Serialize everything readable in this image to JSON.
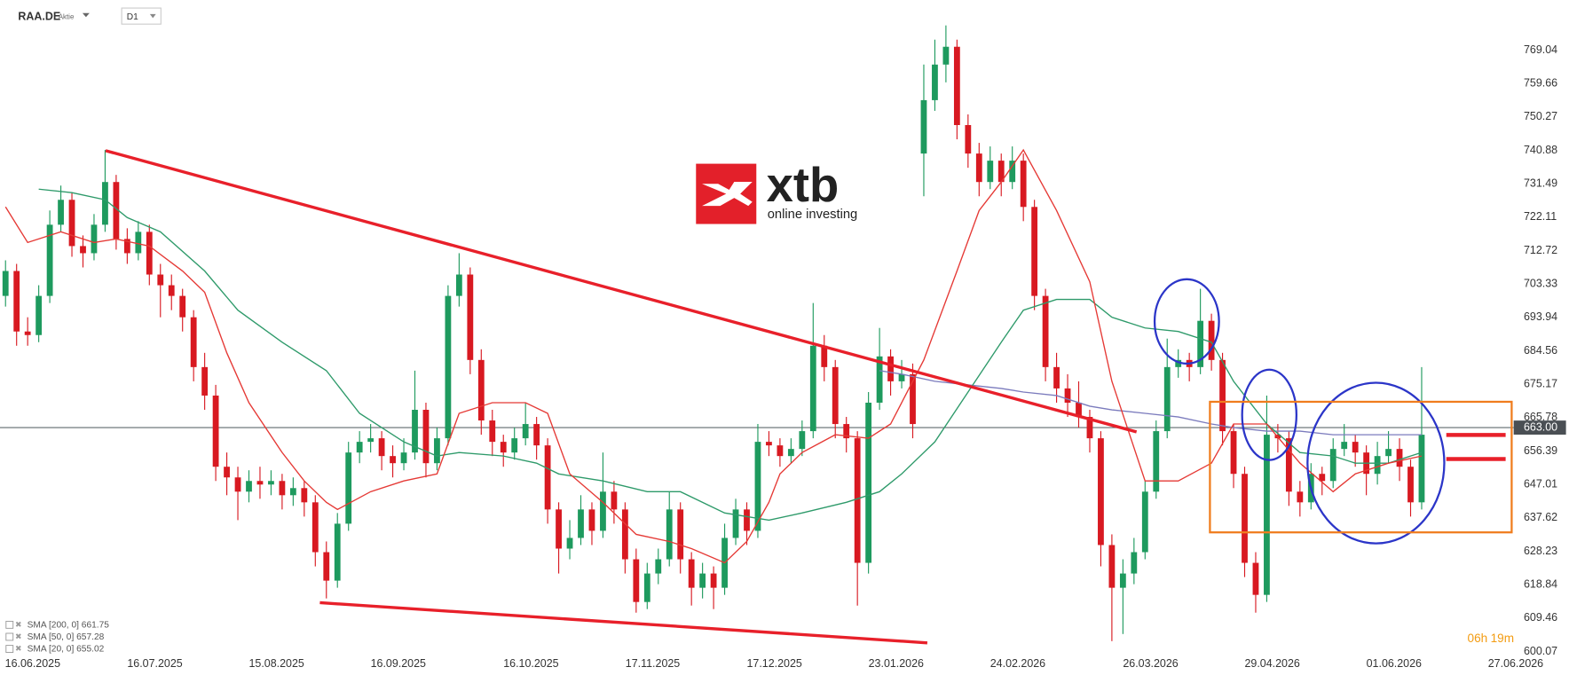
{
  "header": {
    "symbol": "RAA.DE",
    "instrument": "Aktie",
    "timeframe": "D1"
  },
  "logo": {
    "name": "xtb",
    "tagline": "online investing"
  },
  "countdown": {
    "hours": "06h",
    "minutes": "19m"
  },
  "chart_data": {
    "type": "candlestick",
    "up_color": "#1e9a5e",
    "down_color": "#d81921",
    "xlim": [
      0,
      137
    ],
    "ylim": [
      598,
      783
    ],
    "xticks": [
      {
        "value": 3,
        "label": "16.06.2025"
      },
      {
        "value": 14,
        "label": "16.07.2025"
      },
      {
        "value": 25,
        "label": "15.08.2025"
      },
      {
        "value": 36,
        "label": "16.09.2025"
      },
      {
        "value": 48,
        "label": "16.10.2025"
      },
      {
        "value": 59,
        "label": "17.11.2025"
      },
      {
        "value": 70,
        "label": "17.12.2025"
      },
      {
        "value": 81,
        "label": "23.01.2026"
      },
      {
        "value": 92,
        "label": "24.02.2026"
      },
      {
        "value": 104,
        "label": "26.03.2026"
      },
      {
        "value": 115,
        "label": "29.04.2026"
      },
      {
        "value": 126,
        "label": "01.06.2026"
      },
      {
        "value": 137,
        "label": "27.06.2026"
      }
    ],
    "yticks": [
      600.07,
      609.46,
      618.84,
      628.23,
      637.62,
      647.01,
      656.39,
      665.78,
      675.17,
      684.56,
      693.94,
      703.33,
      712.72,
      722.11,
      731.49,
      740.88,
      750.27,
      759.66,
      769.04
    ],
    "price_line": {
      "value": 663,
      "label": "663.00"
    },
    "ohlc": [
      [
        700,
        710,
        697,
        707
      ],
      [
        707,
        709,
        686,
        690
      ],
      [
        690,
        694,
        686,
        689
      ],
      [
        689,
        703,
        687,
        700
      ],
      [
        700,
        724,
        698,
        720
      ],
      [
        720,
        731,
        718,
        727
      ],
      [
        727,
        729,
        711,
        714
      ],
      [
        714,
        717,
        708,
        712
      ],
      [
        712,
        723,
        710,
        720
      ],
      [
        720,
        741,
        718,
        732
      ],
      [
        732,
        734,
        713,
        716
      ],
      [
        716,
        719,
        709,
        712
      ],
      [
        712,
        721,
        710,
        718
      ],
      [
        718,
        720,
        703,
        706
      ],
      [
        706,
        709,
        694,
        703
      ],
      [
        703,
        706,
        696,
        700
      ],
      [
        700,
        702,
        690,
        694
      ],
      [
        694,
        696,
        676,
        680
      ],
      [
        680,
        684,
        668,
        672
      ],
      [
        672,
        675,
        648,
        652
      ],
      [
        652,
        656,
        644,
        649
      ],
      [
        649,
        652,
        637,
        645
      ],
      [
        645,
        651,
        642,
        648
      ],
      [
        648,
        652,
        643,
        647
      ],
      [
        647,
        651,
        644,
        648
      ],
      [
        648,
        650,
        640,
        644
      ],
      [
        644,
        649,
        641,
        646
      ],
      [
        646,
        648,
        638,
        642
      ],
      [
        642,
        644,
        624,
        628
      ],
      [
        628,
        631,
        615,
        620
      ],
      [
        620,
        639,
        618,
        636
      ],
      [
        636,
        659,
        634,
        656
      ],
      [
        656,
        662,
        653,
        659
      ],
      [
        659,
        664,
        656,
        660
      ],
      [
        660,
        662,
        651,
        655
      ],
      [
        655,
        658,
        649,
        653
      ],
      [
        653,
        660,
        651,
        656
      ],
      [
        656,
        679,
        654,
        668
      ],
      [
        668,
        670,
        649,
        653
      ],
      [
        653,
        663,
        651,
        660
      ],
      [
        660,
        703,
        658,
        700
      ],
      [
        700,
        712,
        697,
        706
      ],
      [
        706,
        708,
        678,
        682
      ],
      [
        682,
        685,
        661,
        665
      ],
      [
        665,
        668,
        655,
        659
      ],
      [
        659,
        661,
        652,
        656
      ],
      [
        656,
        663,
        654,
        660
      ],
      [
        660,
        670,
        658,
        664
      ],
      [
        664,
        666,
        654,
        658
      ],
      [
        658,
        660,
        636,
        640
      ],
      [
        640,
        642,
        622,
        629
      ],
      [
        629,
        637,
        626,
        632
      ],
      [
        632,
        644,
        630,
        640
      ],
      [
        640,
        642,
        630,
        634
      ],
      [
        634,
        656,
        632,
        645
      ],
      [
        645,
        648,
        636,
        640
      ],
      [
        640,
        642,
        622,
        626
      ],
      [
        626,
        629,
        611,
        614
      ],
      [
        614,
        625,
        612,
        622
      ],
      [
        622,
        629,
        619,
        626
      ],
      [
        626,
        645,
        624,
        640
      ],
      [
        640,
        642,
        622,
        626
      ],
      [
        626,
        628,
        613,
        618
      ],
      [
        618,
        625,
        615,
        622
      ],
      [
        622,
        624,
        612,
        618
      ],
      [
        618,
        636,
        616,
        632
      ],
      [
        632,
        643,
        630,
        640
      ],
      [
        640,
        642,
        630,
        634
      ],
      [
        634,
        664,
        632,
        659
      ],
      [
        659,
        662,
        655,
        658
      ],
      [
        658,
        660,
        652,
        655
      ],
      [
        655,
        660,
        653,
        657
      ],
      [
        657,
        665,
        655,
        662
      ],
      [
        662,
        698,
        660,
        686
      ],
      [
        686,
        689,
        676,
        680
      ],
      [
        680,
        682,
        660,
        664
      ],
      [
        664,
        666,
        656,
        660
      ],
      [
        660,
        662,
        613,
        625
      ],
      [
        625,
        673,
        622,
        670
      ],
      [
        670,
        691,
        668,
        683
      ],
      [
        683,
        685,
        672,
        676
      ],
      [
        676,
        682,
        674,
        678
      ],
      [
        678,
        681,
        660,
        664
      ],
      [
        740,
        765,
        728,
        755
      ],
      [
        755,
        772,
        752,
        765
      ],
      [
        765,
        776,
        760,
        770
      ],
      [
        770,
        772,
        744,
        748
      ],
      [
        748,
        751,
        736,
        740
      ],
      [
        740,
        743,
        728,
        732
      ],
      [
        732,
        742,
        730,
        738
      ],
      [
        738,
        740,
        728,
        732
      ],
      [
        732,
        742,
        730,
        738
      ],
      [
        738,
        740,
        721,
        725
      ],
      [
        725,
        727,
        696,
        700
      ],
      [
        700,
        702,
        676,
        680
      ],
      [
        680,
        684,
        670,
        674
      ],
      [
        674,
        678,
        666,
        670
      ],
      [
        670,
        676,
        663,
        666
      ],
      [
        666,
        668,
        656,
        660
      ],
      [
        660,
        662,
        624,
        630
      ],
      [
        630,
        633,
        603,
        618
      ],
      [
        618,
        626,
        605,
        622
      ],
      [
        622,
        632,
        619,
        628
      ],
      [
        628,
        648,
        626,
        645
      ],
      [
        645,
        665,
        643,
        662
      ],
      [
        662,
        688,
        660,
        680
      ],
      [
        680,
        685,
        677,
        682
      ],
      [
        682,
        684,
        676,
        680
      ],
      [
        680,
        702,
        678,
        693
      ],
      [
        693,
        695,
        679,
        682
      ],
      [
        682,
        684,
        658,
        662
      ],
      [
        662,
        664,
        646,
        650
      ],
      [
        650,
        652,
        621,
        625
      ],
      [
        625,
        628,
        611,
        616
      ],
      [
        616,
        672,
        614,
        661
      ],
      [
        661,
        664,
        656,
        660
      ],
      [
        660,
        662,
        641,
        645
      ],
      [
        645,
        648,
        638,
        642
      ],
      [
        642,
        653,
        640,
        650
      ],
      [
        650,
        652,
        644,
        648
      ],
      [
        648,
        660,
        646,
        657
      ],
      [
        657,
        664,
        655,
        659
      ],
      [
        659,
        661,
        652,
        656
      ],
      [
        656,
        658,
        644,
        650
      ],
      [
        650,
        659,
        647,
        655
      ],
      [
        655,
        662,
        653,
        657
      ],
      [
        657,
        660,
        648,
        652
      ],
      [
        652,
        654,
        638,
        642
      ],
      [
        642,
        680,
        640,
        661
      ]
    ],
    "series": [
      {
        "name": "SMA [200, 0]",
        "last": 661.75,
        "color": "#7b7bbd",
        "x": [
          79,
          81,
          84,
          87,
          90,
          92,
          95,
          98,
          100,
          103,
          106,
          109,
          111,
          114,
          117,
          120,
          122,
          125,
          128
        ],
        "values": [
          679,
          678,
          676,
          675,
          674,
          673,
          672,
          669,
          668,
          667,
          666,
          664,
          663,
          662,
          662,
          661,
          661,
          661,
          661
        ]
      },
      {
        "name": "SMA [50, 0]",
        "last": 657.28,
        "color": "#2e9a6a",
        "x": [
          3,
          6,
          9,
          11,
          14,
          18,
          21,
          25,
          29,
          32,
          36,
          39,
          41,
          45,
          48,
          50,
          54,
          58,
          61,
          65,
          69,
          72,
          76,
          79,
          81,
          84,
          87,
          90,
          92,
          95,
          98,
          100,
          103,
          106,
          109,
          111,
          114,
          117,
          120,
          122,
          125,
          128
        ],
        "values": [
          730,
          729,
          727,
          722,
          718,
          707,
          696,
          687,
          679,
          667,
          659,
          655,
          656,
          655,
          653,
          650,
          648,
          645,
          645,
          639,
          637,
          639,
          642,
          645,
          650,
          659,
          673,
          687,
          696,
          699,
          699,
          694,
          691,
          690,
          687,
          676,
          664,
          656,
          655,
          653,
          653,
          656
        ]
      },
      {
        "name": "SMA [20, 0]",
        "last": 655.02,
        "color": "#e53935",
        "x": [
          0,
          2,
          5,
          8,
          10,
          13,
          16,
          18,
          20,
          22,
          25,
          27,
          29,
          30,
          33,
          36,
          39,
          41,
          44,
          47,
          49,
          51,
          54,
          57,
          60,
          62,
          65,
          67,
          69,
          70,
          72,
          75,
          78,
          80,
          83,
          86,
          88,
          90,
          92,
          95,
          98,
          100,
          103,
          106,
          109,
          111,
          114,
          117,
          120,
          122,
          125,
          128
        ],
        "values": [
          725,
          715,
          718,
          715,
          716,
          714,
          707,
          701,
          684,
          670,
          656,
          648,
          642,
          640,
          645,
          648,
          650,
          667,
          670,
          670,
          667,
          650,
          642,
          633,
          631,
          629,
          625,
          631,
          642,
          650,
          656,
          661,
          660,
          664,
          682,
          707,
          724,
          732,
          741,
          724,
          704,
          676,
          648,
          648,
          653,
          664,
          664,
          653,
          645,
          650,
          653,
          655
        ]
      }
    ]
  }
}
